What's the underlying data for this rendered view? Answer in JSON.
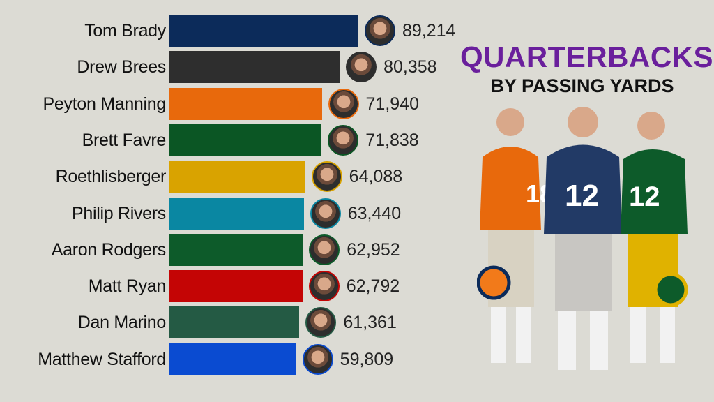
{
  "title": {
    "line1": "QUARTERBACKS",
    "line2": "BY PASSING YARDS"
  },
  "chart_data": {
    "type": "bar",
    "orientation": "horizontal",
    "title": "QUARTERBACKS BY PASSING YARDS",
    "xlabel": "",
    "ylabel": "",
    "xlim": [
      0,
      89214
    ],
    "categories": [
      "Tom Brady",
      "Drew Brees",
      "Peyton Manning",
      "Brett Favre",
      "Roethlisberger",
      "Philip Rivers",
      "Aaron Rodgers",
      "Matt Ryan",
      "Dan Marino",
      "Matthew Stafford"
    ],
    "values": [
      89214,
      80358,
      71940,
      71838,
      64088,
      63440,
      62952,
      62792,
      61361,
      59809
    ],
    "value_labels": [
      "89,214",
      "80,358",
      "71,940",
      "71,838",
      "64,088",
      "63,440",
      "62,952",
      "62,792",
      "61,361",
      "59,809"
    ],
    "colors": [
      "#0c2b5a",
      "#2e2e2e",
      "#e8690c",
      "#0b5624",
      "#d9a300",
      "#0a87a2",
      "#0d5b2a",
      "#c40505",
      "#245a44",
      "#0a4bd1"
    ]
  }
}
